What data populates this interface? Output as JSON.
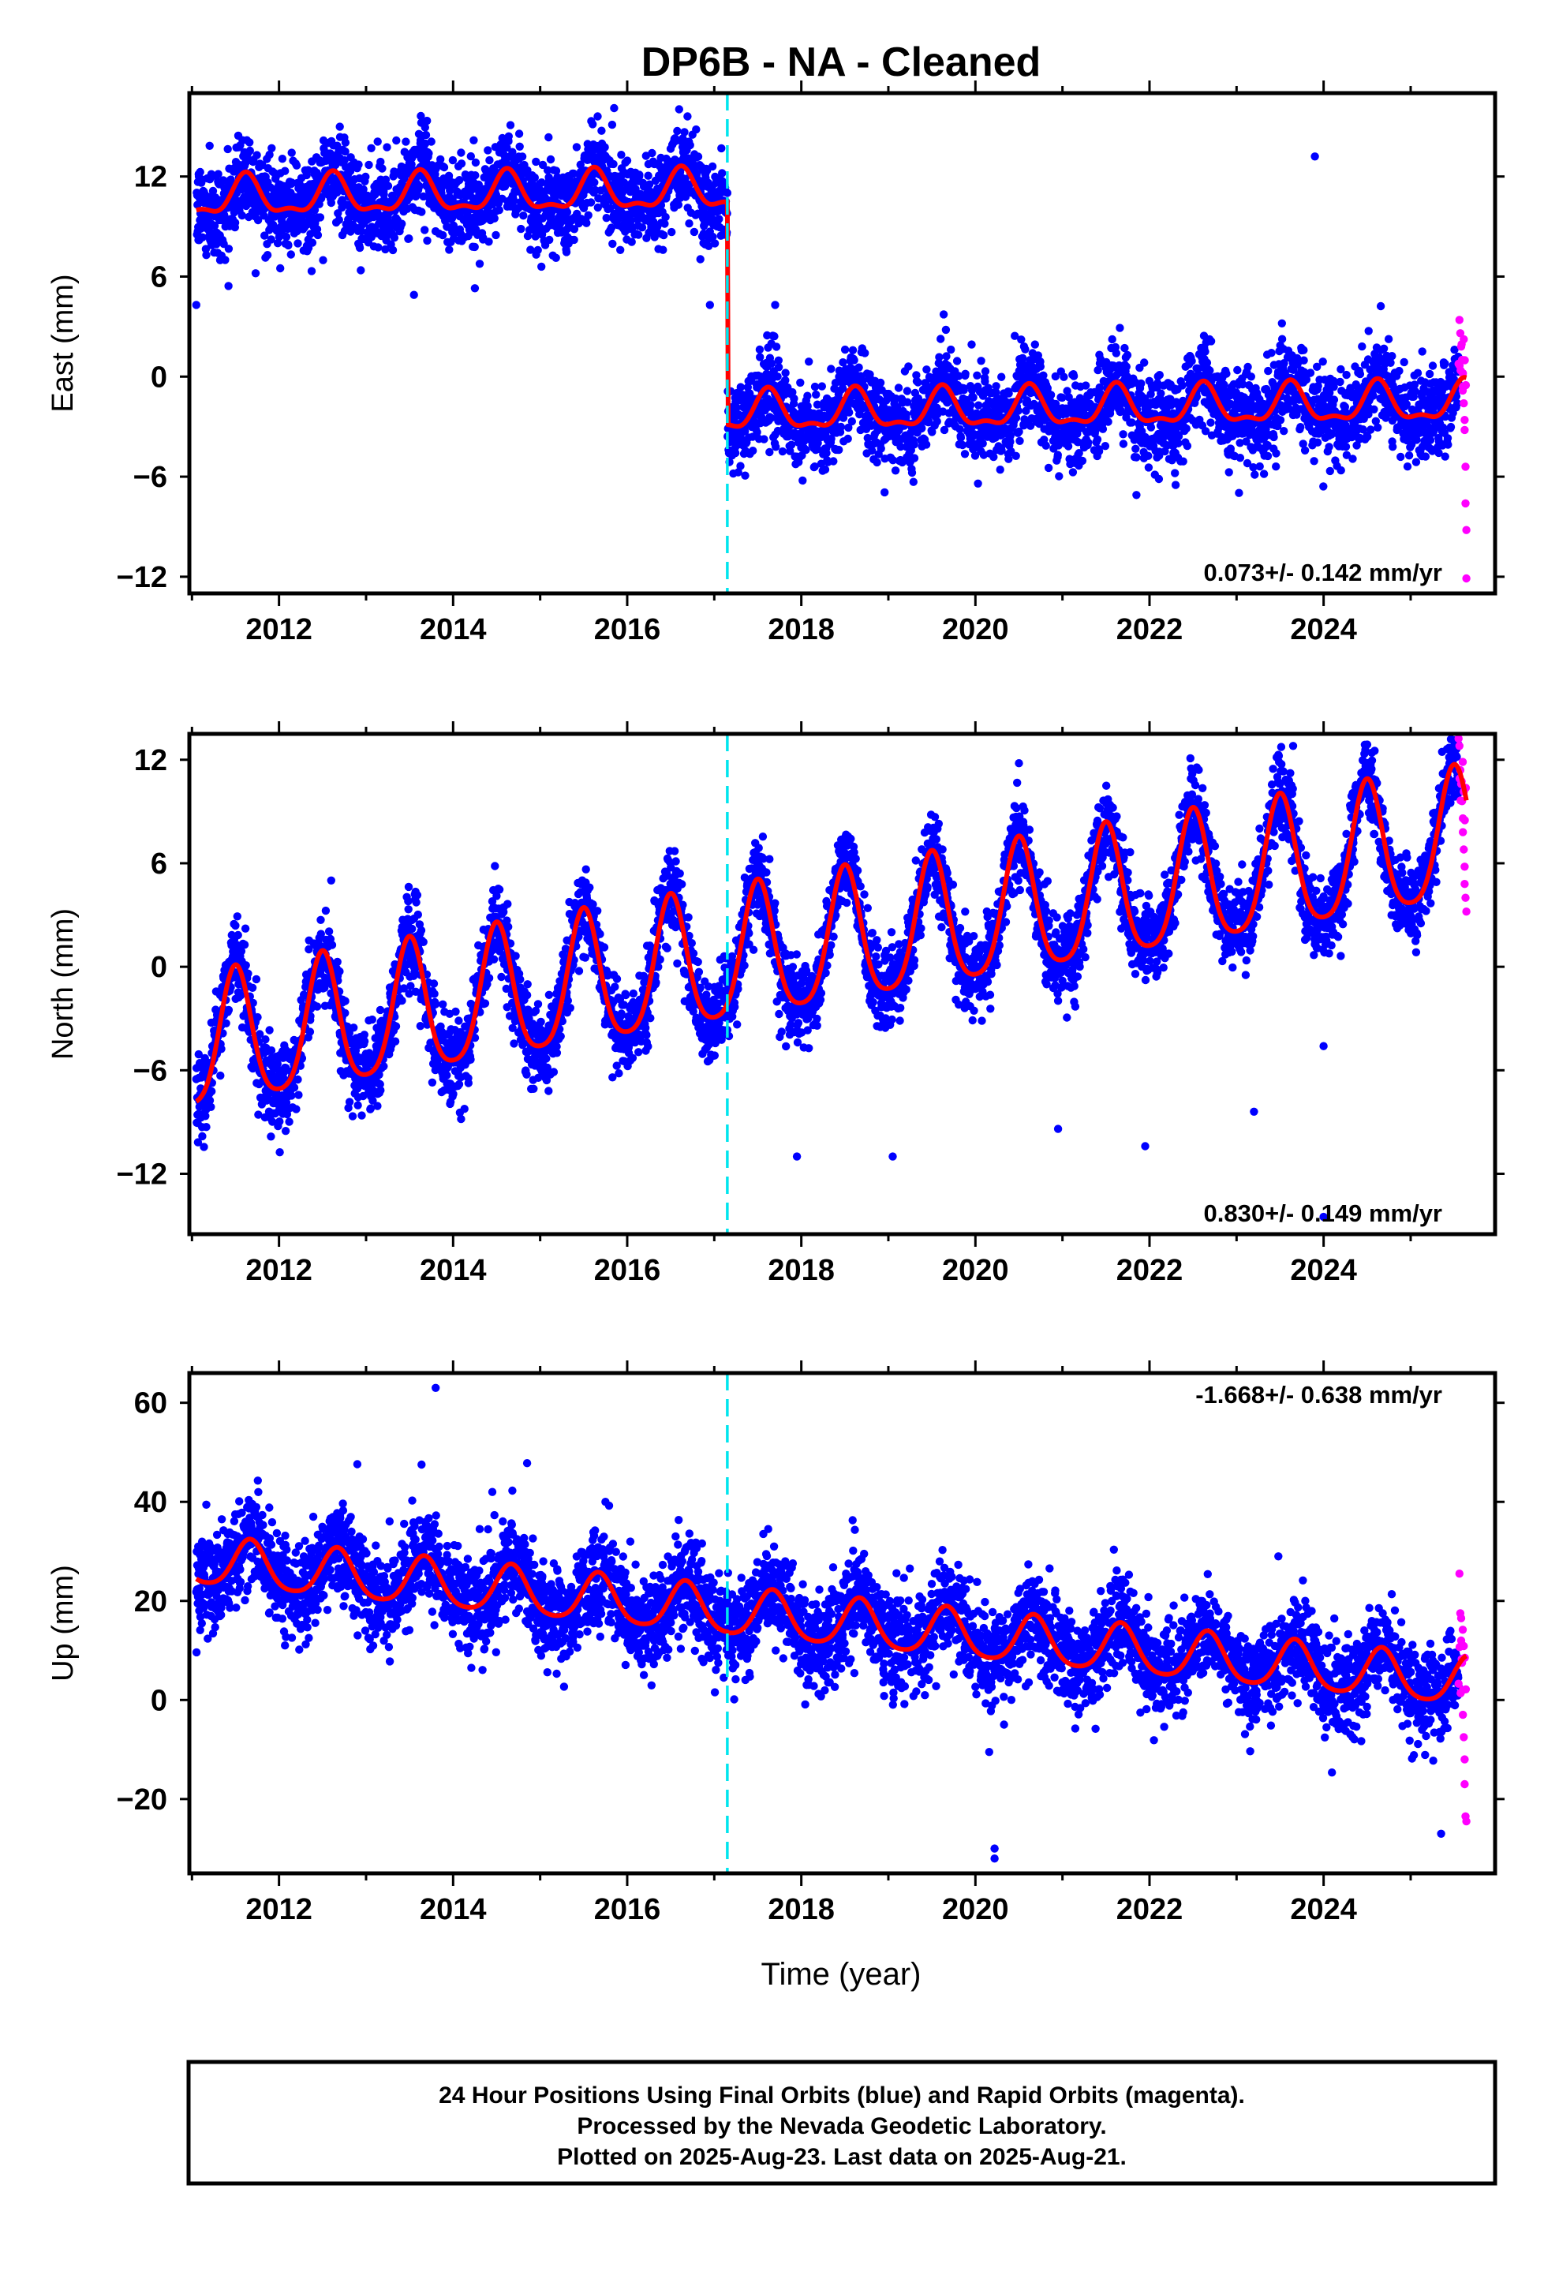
{
  "chart_data": {
    "title": "DP6B  - NA - Cleaned",
    "xlabel": "Time (year)",
    "x_ticks": [
      "2012",
      "2014",
      "2016",
      "2018",
      "2020",
      "2022",
      "2024"
    ],
    "xlim": [
      2010.97,
      2025.97
    ],
    "step_epoch": 2017.15,
    "last_data": 2025.64,
    "rapid_orbit_start": 2025.55,
    "colors": {
      "final_orbits": "#0000ff",
      "rapid_orbits": "#ff00ff",
      "model_fit": "#ff0000",
      "step_marker": "#00e5ee",
      "frame": "#000000"
    },
    "panels": [
      {
        "component": "east",
        "type": "scatter",
        "ylabel": "East (mm)",
        "ylim": [
          -13,
          17
        ],
        "y_ticks": [
          "12",
          "6",
          "0",
          "−6",
          "−12"
        ],
        "rate_label": "0.073+/- 0.142 mm/yr",
        "rate_position": "bottom-right",
        "rate": 0.073,
        "model": {
          "pre_step_offset": 10.9,
          "post_step_offset": -1.9,
          "trend": 0.073,
          "annual_amp": 1.1,
          "semiannual_amp": 0.45,
          "phase_peak": 0.62
        },
        "scatter_sd": 1.3,
        "outliers": [
          {
            "x": 2011.05,
            "y": 4.3
          },
          {
            "x": 2016.95,
            "y": 4.3
          },
          {
            "x": 2013.55,
            "y": 4.9
          },
          {
            "x": 2014.25,
            "y": 5.3
          },
          {
            "x": 2015.85,
            "y": 16.1
          },
          {
            "x": 2021.85,
            "y": -7.1
          },
          {
            "x": 2023.9,
            "y": 13.2
          },
          {
            "x": 2017.7,
            "y": 4.3
          }
        ],
        "rapid_points": [
          {
            "x": 2025.56,
            "y": 3.4
          },
          {
            "x": 2025.57,
            "y": 2.6
          },
          {
            "x": 2025.58,
            "y": 1.8
          },
          {
            "x": 2025.59,
            "y": 1.0
          },
          {
            "x": 2025.6,
            "y": 0.2
          },
          {
            "x": 2025.6,
            "y": -0.6
          },
          {
            "x": 2025.61,
            "y": -1.6
          },
          {
            "x": 2025.62,
            "y": -2.6
          },
          {
            "x": 2025.62,
            "y": -3.2
          },
          {
            "x": 2025.63,
            "y": -5.4
          },
          {
            "x": 2025.63,
            "y": -7.6
          },
          {
            "x": 2025.64,
            "y": -9.2
          },
          {
            "x": 2025.64,
            "y": -12.1
          }
        ]
      },
      {
        "component": "north",
        "type": "scatter",
        "ylabel": "North (mm)",
        "ylim": [
          -15.5,
          13.5
        ],
        "y_ticks": [
          "12",
          "6",
          "0",
          "−6",
          "−12"
        ],
        "rate_label": "0.830+/- 0.149 mm/yr",
        "rate_position": "bottom-right",
        "rate": 0.83,
        "model": {
          "offset": -4.8,
          "trend": 0.83,
          "annual_amp": 3.8,
          "semiannual_amp": 0.7,
          "phase_peak": 0.5,
          "reference_year": 2011.0
        },
        "scatter_sd": 1.2,
        "outliers": [
          {
            "x": 2017.95,
            "y": -11.0
          },
          {
            "x": 2019.05,
            "y": -11.0
          },
          {
            "x": 2020.95,
            "y": -9.4
          },
          {
            "x": 2021.95,
            "y": -10.4
          },
          {
            "x": 2023.2,
            "y": -8.4
          },
          {
            "x": 2024.0,
            "y": -14.5
          },
          {
            "x": 2023.65,
            "y": 12.8
          },
          {
            "x": 2024.0,
            "y": -4.6
          },
          {
            "x": 2012.6,
            "y": 5.0
          },
          {
            "x": 2020.5,
            "y": 11.8
          }
        ],
        "rapid_points": [
          {
            "x": 2025.56,
            "y": 12.8
          },
          {
            "x": 2025.57,
            "y": 11.4
          },
          {
            "x": 2025.58,
            "y": 10.6
          },
          {
            "x": 2025.59,
            "y": 9.6
          },
          {
            "x": 2025.6,
            "y": 8.6
          },
          {
            "x": 2025.6,
            "y": 7.8
          },
          {
            "x": 2025.61,
            "y": 6.8
          },
          {
            "x": 2025.62,
            "y": 5.8
          },
          {
            "x": 2025.62,
            "y": 4.8
          },
          {
            "x": 2025.63,
            "y": 4.0
          },
          {
            "x": 2025.64,
            "y": 3.2
          }
        ]
      },
      {
        "component": "up",
        "type": "scatter",
        "ylabel": "Up (mm)",
        "ylim": [
          -35,
          66
        ],
        "y_ticks": [
          "60",
          "40",
          "20",
          "0",
          "−20"
        ],
        "rate_label": "-1.668+/- 0.638 mm/yr",
        "rate_position": "top-right",
        "rate": -1.668,
        "model": {
          "pre_step_offset": 23.0,
          "post_step_offset": 10.5,
          "trend": -1.668,
          "annual_amp": 4.8,
          "semiannual_amp": 0.8,
          "phase_peak": 0.67
        },
        "scatter_sd": 4.8,
        "outliers": [
          {
            "x": 2013.8,
            "y": 63.0
          },
          {
            "x": 2014.85,
            "y": 47.8
          },
          {
            "x": 2012.9,
            "y": 47.6
          },
          {
            "x": 2014.45,
            "y": 42.0
          },
          {
            "x": 2015.75,
            "y": 40.0
          },
          {
            "x": 2017.62,
            "y": 34.5
          },
          {
            "x": 2020.22,
            "y": -32.0
          },
          {
            "x": 2020.22,
            "y": -30.0
          },
          {
            "x": 2023.48,
            "y": 29.0
          },
          {
            "x": 2021.55,
            "y": 23.0
          },
          {
            "x": 2019.72,
            "y": 20.0
          },
          {
            "x": 2025.35,
            "y": -27.0
          }
        ],
        "rapid_points": [
          {
            "x": 2025.56,
            "y": 25.5
          },
          {
            "x": 2025.57,
            "y": 17.5
          },
          {
            "x": 2025.58,
            "y": 16.5
          },
          {
            "x": 2025.58,
            "y": 12.0
          },
          {
            "x": 2025.59,
            "y": 7.5
          },
          {
            "x": 2025.6,
            "y": 2.0
          },
          {
            "x": 2025.6,
            "y": -3.0
          },
          {
            "x": 2025.61,
            "y": -7.5
          },
          {
            "x": 2025.62,
            "y": -12.0
          },
          {
            "x": 2025.62,
            "y": -17.0
          },
          {
            "x": 2025.63,
            "y": -23.5
          },
          {
            "x": 2025.64,
            "y": -24.5
          }
        ]
      }
    ],
    "footer_lines": [
      "24 Hour Positions Using Final Orbits (blue) and Rapid Orbits (magenta).",
      "Processed by the Nevada Geodetic Laboratory.",
      "Plotted on 2025-Aug-23. Last data on 2025-Aug-21."
    ]
  }
}
